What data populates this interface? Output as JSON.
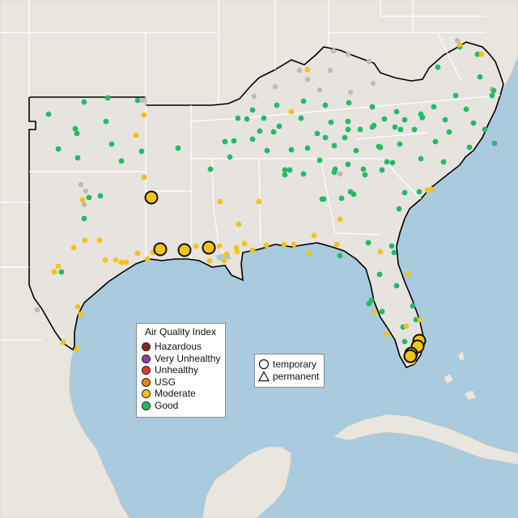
{
  "colors": {
    "water": "#aacbdd",
    "land": "#e9e6e0",
    "region": "#e7e4df",
    "state_border": "#ffffff",
    "region_border": "#000000",
    "good": "#22bb66",
    "moderate": "#f2c318",
    "usg": "#e58518",
    "unhealthy": "#e1372f",
    "very_unhealthy": "#8e3fa6",
    "hazardous": "#7a2a24",
    "no_data": "#bcbcbc"
  },
  "legend": {
    "title": "Air Quality Index",
    "items": [
      {
        "label": "Hazardous",
        "color": "#7a2a24"
      },
      {
        "label": "Very Unhealthy",
        "color": "#8e3fa6"
      },
      {
        "label": "Unhealthy",
        "color": "#e1372f"
      },
      {
        "label": "USG",
        "color": "#e58518"
      },
      {
        "label": "Moderate",
        "color": "#f2c318"
      },
      {
        "label": "Good",
        "color": "#22bb66"
      }
    ]
  },
  "monitor_type_legend": {
    "temporary": "temporary",
    "permanent": "permanent"
  },
  "monitors": {
    "good": [
      [
        60,
        141
      ],
      [
        104,
        126
      ],
      [
        133,
        121
      ],
      [
        170,
        124
      ],
      [
        93,
        159
      ],
      [
        95,
        165
      ],
      [
        131,
        150
      ],
      [
        138,
        178
      ],
      [
        72,
        184
      ],
      [
        96,
        195
      ],
      [
        220,
        183
      ],
      [
        175,
        187
      ],
      [
        150,
        199
      ],
      [
        110,
        244
      ],
      [
        124,
        242
      ],
      [
        104,
        270
      ],
      [
        76,
        336
      ],
      [
        294,
        146
      ],
      [
        312,
        136
      ],
      [
        342,
        130
      ],
      [
        375,
        125
      ],
      [
        402,
        130
      ],
      [
        431,
        127
      ],
      [
        460,
        132
      ],
      [
        490,
        138
      ],
      [
        520,
        141
      ],
      [
        550,
        148
      ],
      [
        576,
        135
      ],
      [
        608,
        118
      ],
      [
        278,
        175
      ],
      [
        289,
        174
      ],
      [
        284,
        194
      ],
      [
        260,
        209
      ],
      [
        312,
        172
      ],
      [
        330,
        186
      ],
      [
        345,
        156
      ],
      [
        372,
        146
      ],
      [
        409,
        151
      ],
      [
        430,
        150
      ],
      [
        430,
        160
      ],
      [
        445,
        160
      ],
      [
        460,
        157
      ],
      [
        475,
        147
      ],
      [
        495,
        160
      ],
      [
        500,
        148
      ],
      [
        522,
        145
      ],
      [
        538,
        175
      ],
      [
        555,
        163
      ],
      [
        585,
        152
      ],
      [
        599,
        160
      ],
      [
        580,
        182
      ],
      [
        611,
        177
      ],
      [
        360,
        185
      ],
      [
        352,
        210
      ],
      [
        380,
        183
      ],
      [
        395,
        198
      ],
      [
        358,
        210
      ],
      [
        375,
        215
      ],
      [
        400,
        246
      ],
      [
        440,
        186
      ],
      [
        470,
        182
      ],
      [
        494,
        178
      ],
      [
        520,
        196
      ],
      [
        548,
        200
      ],
      [
        437,
        240
      ],
      [
        422,
        245
      ],
      [
        433,
        237
      ],
      [
        451,
        216
      ],
      [
        472,
        210
      ],
      [
        485,
        201
      ],
      [
        500,
        238
      ],
      [
        518,
        237
      ],
      [
        493,
        258
      ],
      [
        484,
        304
      ],
      [
        487,
        312
      ],
      [
        455,
        300
      ],
      [
        420,
        316
      ],
      [
        469,
        339
      ],
      [
        490,
        353
      ],
      [
        459,
        371
      ],
      [
        456,
        375
      ],
      [
        472,
        385
      ],
      [
        510,
        378
      ],
      [
        498,
        404
      ],
      [
        500,
        422
      ],
      [
        514,
        395
      ],
      [
        568,
        58
      ],
      [
        590,
        67
      ],
      [
        541,
        83
      ],
      [
        593,
        95
      ],
      [
        610,
        112
      ],
      [
        563,
        118
      ],
      [
        536,
        132
      ],
      [
        478,
        200
      ],
      [
        413,
        180
      ],
      [
        426,
        170
      ],
      [
        449,
        209
      ],
      [
        392,
        165
      ],
      [
        402,
        170
      ],
      [
        414,
        209
      ],
      [
        326,
        146
      ],
      [
        305,
        147
      ],
      [
        338,
        163
      ],
      [
        321,
        162
      ],
      [
        352,
        216
      ],
      [
        398,
        246
      ],
      [
        430,
        203
      ],
      [
        413,
        213
      ],
      [
        462,
        155
      ],
      [
        512,
        160
      ],
      [
        488,
        157
      ],
      [
        468,
        181
      ]
    ],
    "moderate": [
      [
        178,
        142
      ],
      [
        168,
        167
      ],
      [
        178,
        219
      ],
      [
        102,
        247
      ],
      [
        91,
        306
      ],
      [
        105,
        297
      ],
      [
        72,
        329
      ],
      [
        67,
        336
      ],
      [
        123,
        297
      ],
      [
        130,
        321
      ],
      [
        143,
        321
      ],
      [
        150,
        324
      ],
      [
        156,
        324
      ],
      [
        170,
        313
      ],
      [
        182,
        320
      ],
      [
        189,
        312
      ],
      [
        259,
        322
      ],
      [
        280,
        314
      ],
      [
        293,
        311
      ],
      [
        302,
        301
      ],
      [
        312,
        309
      ],
      [
        329,
        303
      ],
      [
        351,
        302
      ],
      [
        388,
        291
      ],
      [
        416,
        302
      ],
      [
        382,
        313
      ],
      [
        363,
        302
      ],
      [
        272,
        249
      ],
      [
        295,
        277
      ],
      [
        320,
        249
      ],
      [
        292,
        306
      ],
      [
        242,
        304
      ],
      [
        271,
        304
      ],
      [
        96,
        379
      ],
      [
        100,
        388
      ],
      [
        78,
        423
      ],
      [
        95,
        431
      ],
      [
        360,
        138
      ],
      [
        380,
        86
      ],
      [
        420,
        271
      ],
      [
        470,
        311
      ],
      [
        504,
        339
      ],
      [
        463,
        386
      ],
      [
        478,
        413
      ],
      [
        502,
        403
      ],
      [
        519,
        395
      ],
      [
        510,
        447
      ],
      [
        568,
        55
      ],
      [
        595,
        67
      ],
      [
        533,
        234
      ],
      [
        528,
        235
      ],
      [
        277,
        322
      ]
    ],
    "no_data": [
      [
        176,
        124
      ],
      [
        100,
        228
      ],
      [
        106,
        236
      ],
      [
        104,
        253
      ],
      [
        46,
        383
      ],
      [
        314,
        119
      ],
      [
        340,
        107
      ],
      [
        370,
        87
      ],
      [
        380,
        98
      ],
      [
        408,
        87
      ],
      [
        412,
        63
      ],
      [
        430,
        67
      ],
      [
        456,
        76
      ],
      [
        461,
        103
      ],
      [
        433,
        114
      ],
      [
        395,
        111
      ],
      [
        521,
        146
      ],
      [
        512,
        160
      ],
      [
        420,
        215
      ],
      [
        455,
        299
      ],
      [
        565,
        50
      ],
      [
        608,
        110
      ]
    ],
    "large_temporary": [
      [
        187,
        244
      ],
      [
        198,
        308
      ],
      [
        228,
        309
      ],
      [
        258,
        306
      ],
      [
        518,
        421
      ],
      [
        516,
        428
      ],
      [
        508,
        437
      ],
      [
        507,
        440
      ]
    ]
  }
}
